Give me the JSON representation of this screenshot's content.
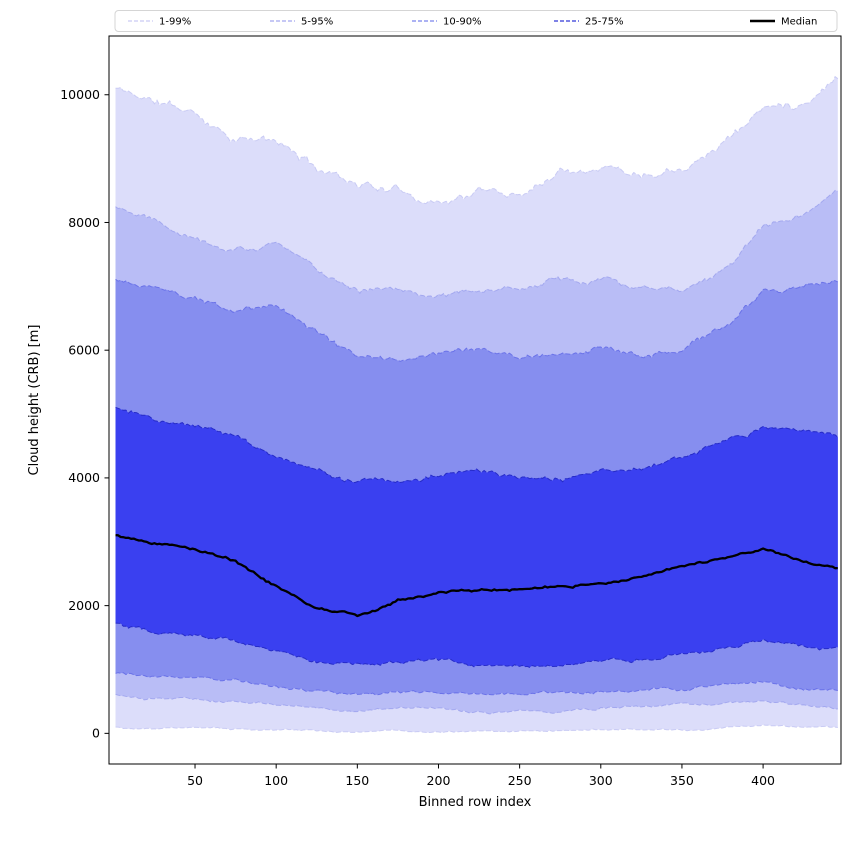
{
  "chart_data": {
    "type": "area",
    "title": "",
    "xlabel": "Binned row index",
    "ylabel": "Cloud height (CRB) [m]",
    "xlim": [
      -3,
      448
    ],
    "ylim": [
      -480,
      10920
    ],
    "xticks": [
      50,
      100,
      150,
      200,
      250,
      300,
      350,
      400
    ],
    "yticks": [
      0,
      2000,
      4000,
      6000,
      8000,
      10000
    ],
    "grid": false,
    "legend_position": "top",
    "legend": {
      "entries": [
        {
          "label": "1-99%",
          "color": "#c9cbf4",
          "dash": true,
          "lw": 1.2
        },
        {
          "label": "5-95%",
          "color": "#a3a8ef",
          "dash": true,
          "lw": 1.2
        },
        {
          "label": "10-90%",
          "color": "#7b83ec",
          "dash": true,
          "lw": 1.2
        },
        {
          "label": "25-75%",
          "color": "#3238d6",
          "dash": true,
          "lw": 1.2
        },
        {
          "label": "Median",
          "color": "#000000",
          "dash": false,
          "lw": 2.6
        }
      ]
    },
    "series": {
      "x": [
        1,
        25,
        50,
        75,
        100,
        125,
        150,
        175,
        200,
        225,
        250,
        275,
        300,
        325,
        350,
        375,
        400,
        425,
        446
      ],
      "p01": [
        100,
        80,
        80,
        60,
        50,
        30,
        20,
        40,
        30,
        30,
        30,
        40,
        50,
        60,
        60,
        80,
        120,
        100,
        90
      ],
      "p05": [
        600,
        550,
        550,
        500,
        450,
        400,
        350,
        400,
        400,
        350,
        350,
        350,
        400,
        400,
        450,
        450,
        500,
        450,
        400
      ],
      "p10": [
        950,
        900,
        900,
        850,
        750,
        650,
        600,
        650,
        650,
        600,
        600,
        600,
        650,
        700,
        700,
        750,
        800,
        700,
        650
      ],
      "p25": [
        1750,
        1600,
        1550,
        1500,
        1300,
        1150,
        1100,
        1150,
        1150,
        1100,
        1050,
        1100,
        1150,
        1200,
        1250,
        1300,
        1450,
        1350,
        1300
      ],
      "median": [
        3100,
        3000,
        2900,
        2700,
        2300,
        1950,
        1850,
        2100,
        2200,
        2250,
        2250,
        2300,
        2350,
        2450,
        2600,
        2750,
        2900,
        2650,
        2600
      ],
      "p75": [
        5100,
        4900,
        4800,
        4650,
        4300,
        4100,
        3950,
        3950,
        4050,
        4100,
        4000,
        4000,
        4100,
        4200,
        4300,
        4600,
        4800,
        4750,
        4650
      ],
      "p90": [
        7100,
        6950,
        6800,
        6600,
        6700,
        6300,
        5900,
        5850,
        5950,
        5950,
        5900,
        5950,
        6000,
        5850,
        5950,
        6300,
        6900,
        7000,
        7100
      ],
      "p95": [
        8250,
        8100,
        7800,
        7600,
        7650,
        7250,
        7000,
        6950,
        6900,
        6950,
        6900,
        7100,
        7150,
        7000,
        7000,
        7300,
        7900,
        8100,
        8450
      ],
      "p99": [
        10100,
        9900,
        9700,
        9350,
        9250,
        8850,
        8650,
        8500,
        8350,
        8500,
        8450,
        8850,
        8950,
        8800,
        8950,
        9300,
        9800,
        9900,
        10350
      ]
    },
    "bands": [
      {
        "label": "1-99%",
        "low": "p01",
        "high": "p99",
        "fill": "#dcddfa",
        "edge": "#c9cbf4"
      },
      {
        "label": "5-95%",
        "low": "p05",
        "high": "p95",
        "fill": "#b9bdf6",
        "edge": "#a3a8ef"
      },
      {
        "label": "10-90%",
        "low": "p10",
        "high": "p90",
        "fill": "#868eef",
        "edge": "#6a72e8"
      },
      {
        "label": "25-75%",
        "low": "p25",
        "high": "p75",
        "fill": "#3a40f0",
        "edge": "#262bc8"
      }
    ],
    "median_line": {
      "label": "Median",
      "color": "#000000",
      "width": 2.3
    }
  }
}
